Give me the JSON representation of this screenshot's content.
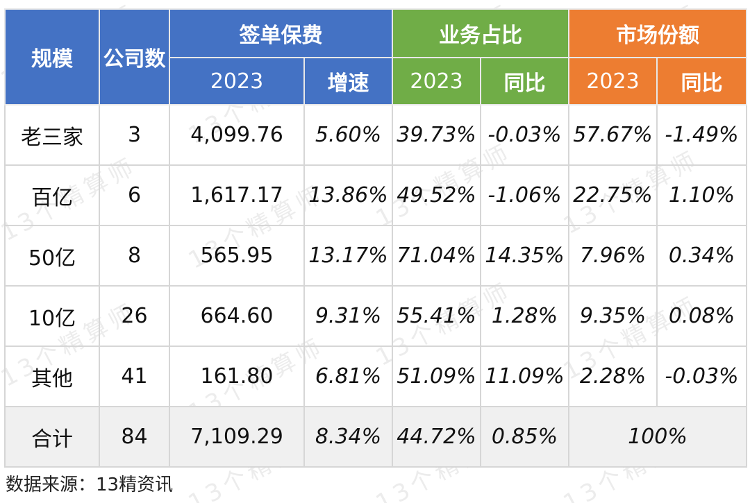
{
  "header": {
    "scale": "规模",
    "company_count": "公司数",
    "premium_group": "签单保费",
    "business_group": "业务占比",
    "market_group": "市场份额",
    "year": "2023",
    "growth": "增速",
    "yoy": "同比"
  },
  "rows": [
    {
      "scale": "老三家",
      "count": "3",
      "premium": "4,099.76",
      "growth": "5.60%",
      "share2023": "39.73%",
      "share_yoy": "-0.03%",
      "market2023": "57.67%",
      "market_yoy": "-1.49%"
    },
    {
      "scale": "百亿",
      "count": "6",
      "premium": "1,617.17",
      "growth": "13.86%",
      "share2023": "49.52%",
      "share_yoy": "-1.06%",
      "market2023": "22.75%",
      "market_yoy": "1.10%"
    },
    {
      "scale": "50亿",
      "count": "8",
      "premium": "565.95",
      "growth": "13.17%",
      "share2023": "71.04%",
      "share_yoy": "14.35%",
      "market2023": "7.96%",
      "market_yoy": "0.34%"
    },
    {
      "scale": "10亿",
      "count": "26",
      "premium": "664.60",
      "growth": "9.31%",
      "share2023": "55.41%",
      "share_yoy": "1.28%",
      "market2023": "9.35%",
      "market_yoy": "0.08%"
    },
    {
      "scale": "其他",
      "count": "41",
      "premium": "161.80",
      "growth": "6.81%",
      "share2023": "51.09%",
      "share_yoy": "11.09%",
      "market2023": "2.28%",
      "market_yoy": "-0.03%"
    }
  ],
  "total": {
    "scale": "合计",
    "count": "84",
    "premium": "7,109.29",
    "growth": "8.34%",
    "share2023": "44.72%",
    "share_yoy": "0.85%",
    "market": "100%"
  },
  "source": "数据来源：13精资讯",
  "watermark": "13个精算师",
  "colors": {
    "blue": "#4472c4",
    "green": "#70ad47",
    "orange": "#ed7d31"
  }
}
